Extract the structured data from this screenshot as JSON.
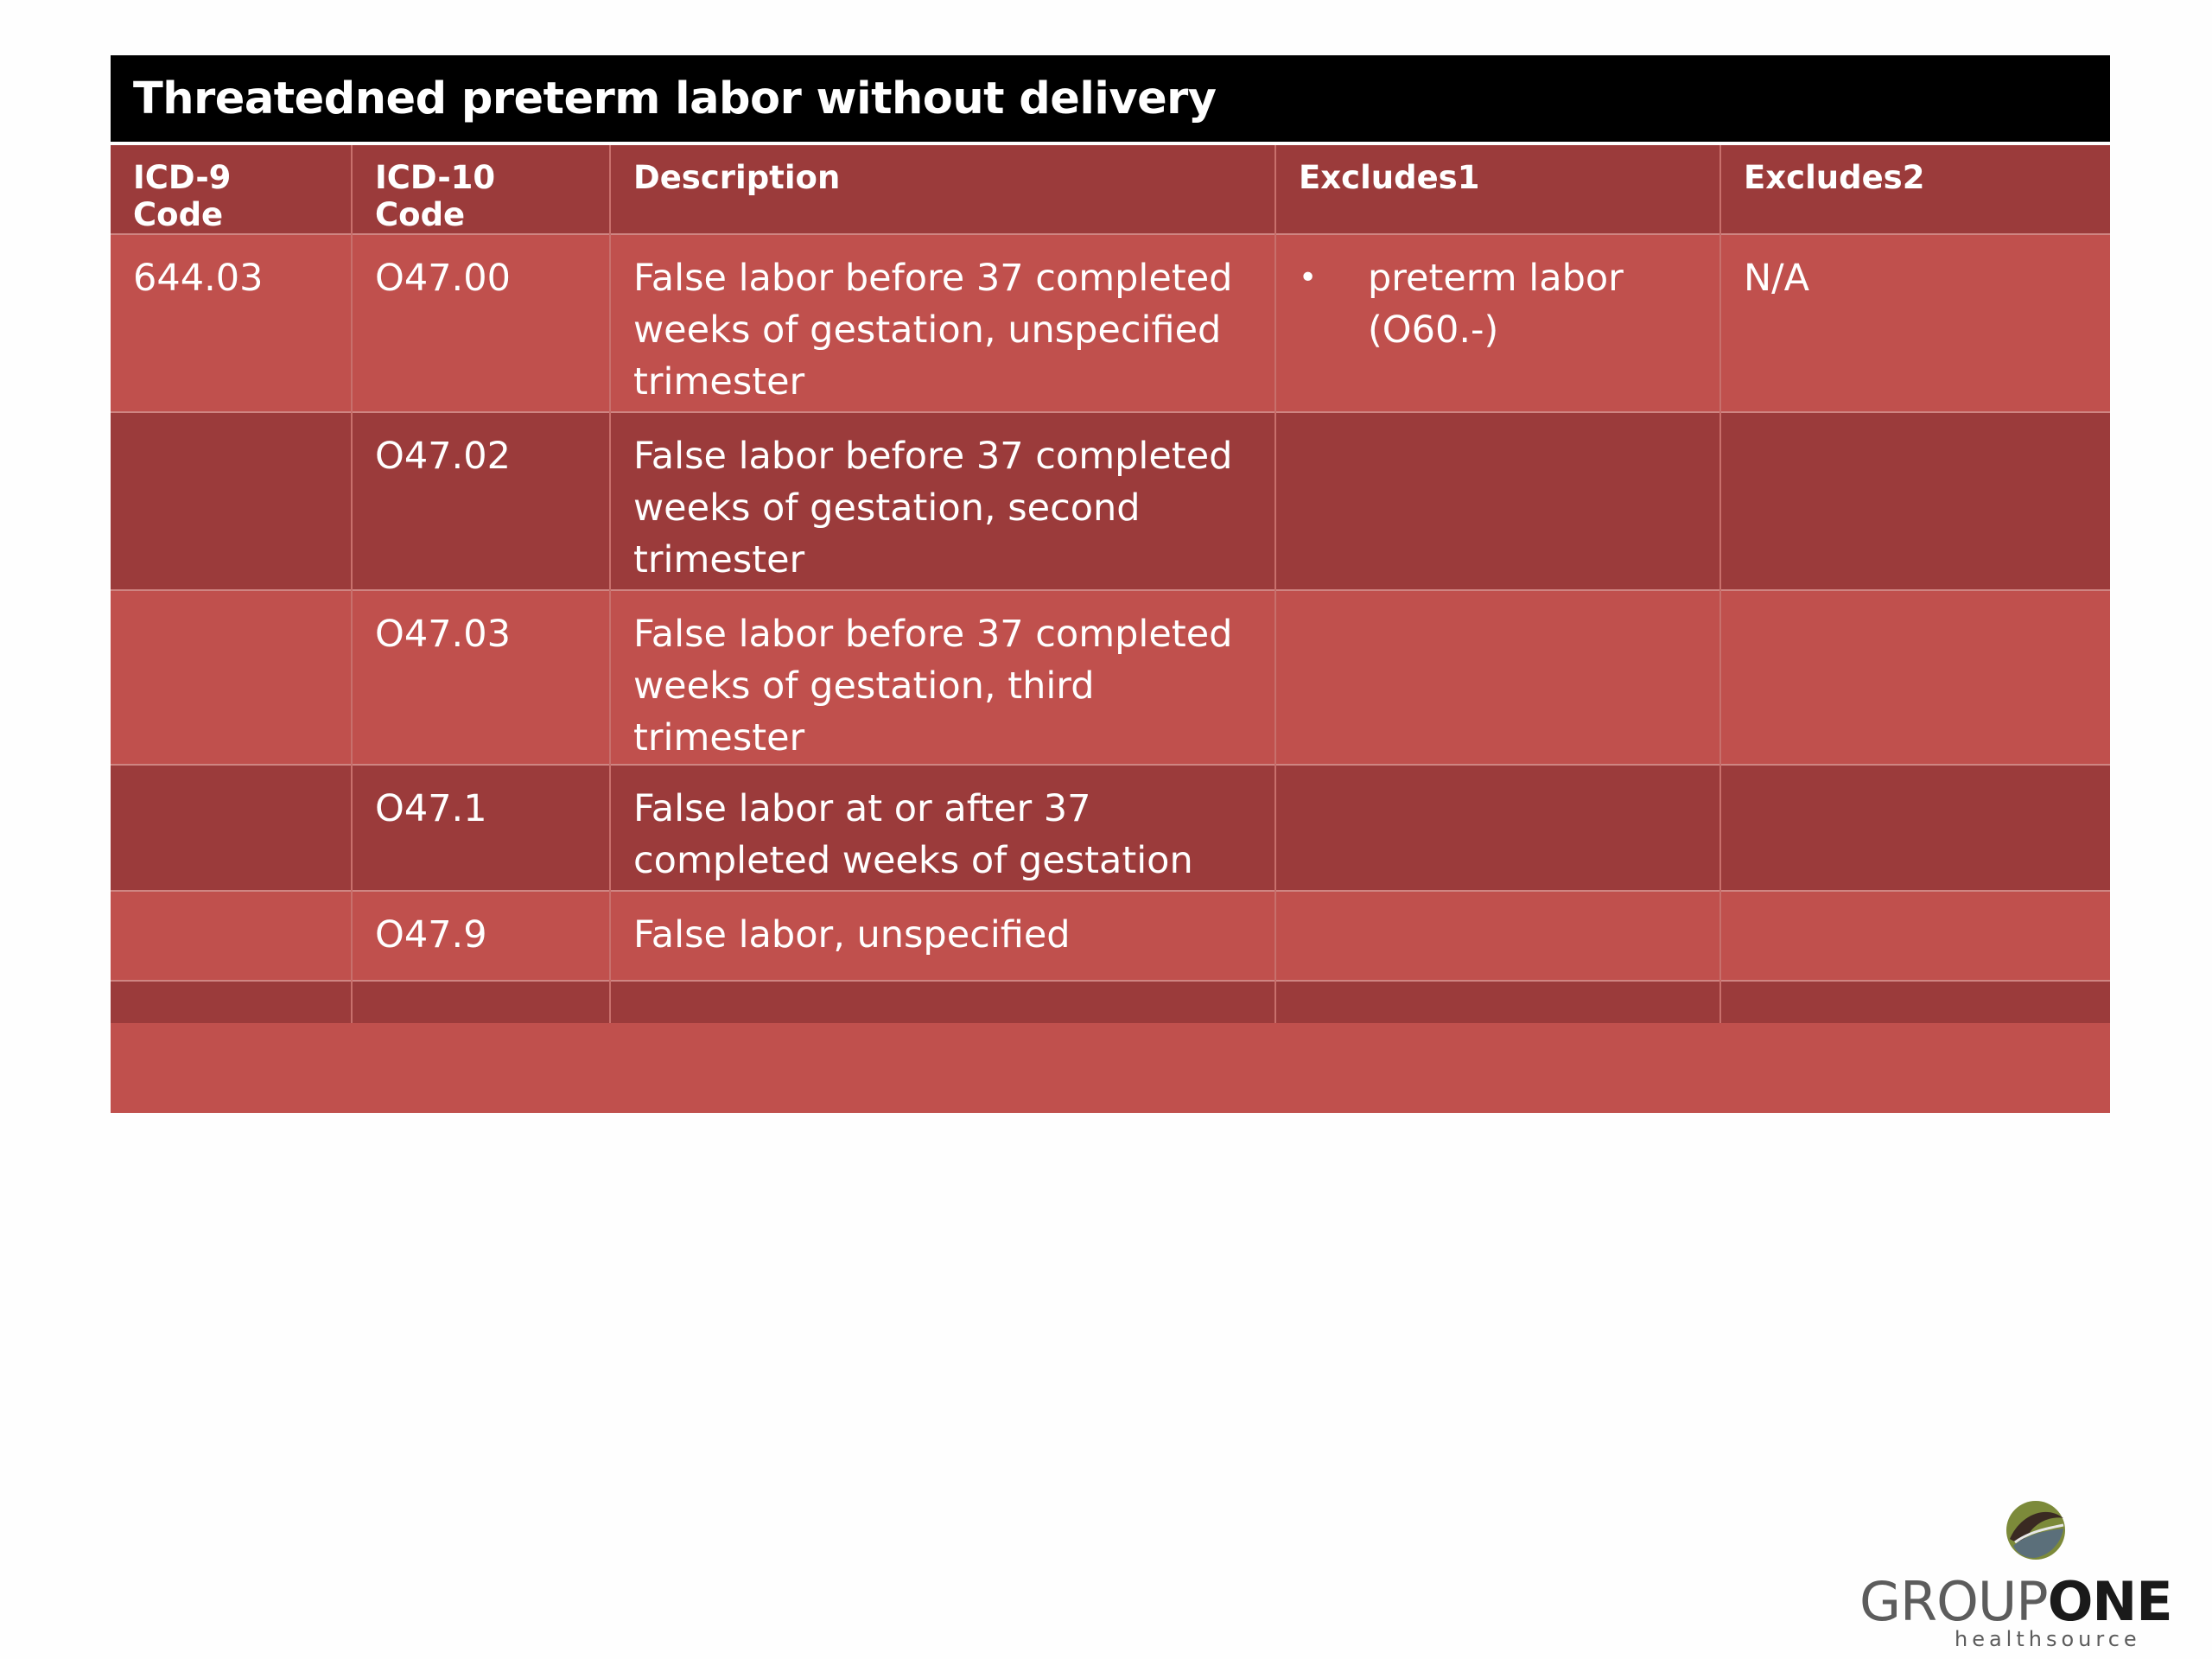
{
  "slide": {
    "title": "Threatedned preterm labor without delivery"
  },
  "table": {
    "headers": [
      "ICD-9 Code",
      "ICD-10 Code",
      "Description",
      "Excludes1",
      "Excludes2"
    ],
    "rows": [
      {
        "icd9": "644.03",
        "icd10": "O47.00",
        "description": "False labor before 37 completed weeks of gestation, unspecified trimester",
        "excludes1_bullet": "•",
        "excludes1": "preterm labor (O60.-)",
        "excludes2": "N/A"
      },
      {
        "icd9": "",
        "icd10": "O47.02",
        "description": "False labor before 37 completed weeks of gestation, second trimester",
        "excludes1_bullet": "",
        "excludes1": "",
        "excludes2": ""
      },
      {
        "icd9": "",
        "icd10": "O47.03",
        "description": "False labor before 37 completed weeks of gestation, third trimester",
        "excludes1_bullet": "",
        "excludes1": "",
        "excludes2": ""
      },
      {
        "icd9": "",
        "icd10": "O47.1",
        "description": "False labor at or after 37 completed weeks of gestation",
        "excludes1_bullet": "",
        "excludes1": "",
        "excludes2": ""
      },
      {
        "icd9": "",
        "icd10": "O47.9",
        "description": "False labor, unspecified",
        "excludes1_bullet": "",
        "excludes1": "",
        "excludes2": ""
      },
      {
        "icd9": "",
        "icd10": "",
        "description": "",
        "excludes1_bullet": "",
        "excludes1": "",
        "excludes2": ""
      }
    ]
  },
  "logo": {
    "word1": "GROUP",
    "word2": "ONE",
    "tagline": "healthsource"
  },
  "colors": {
    "title_bg": "#000000",
    "header_bg": "#9b3b3b",
    "row_odd": "#c0504d",
    "row_even": "#9b3b3b"
  }
}
